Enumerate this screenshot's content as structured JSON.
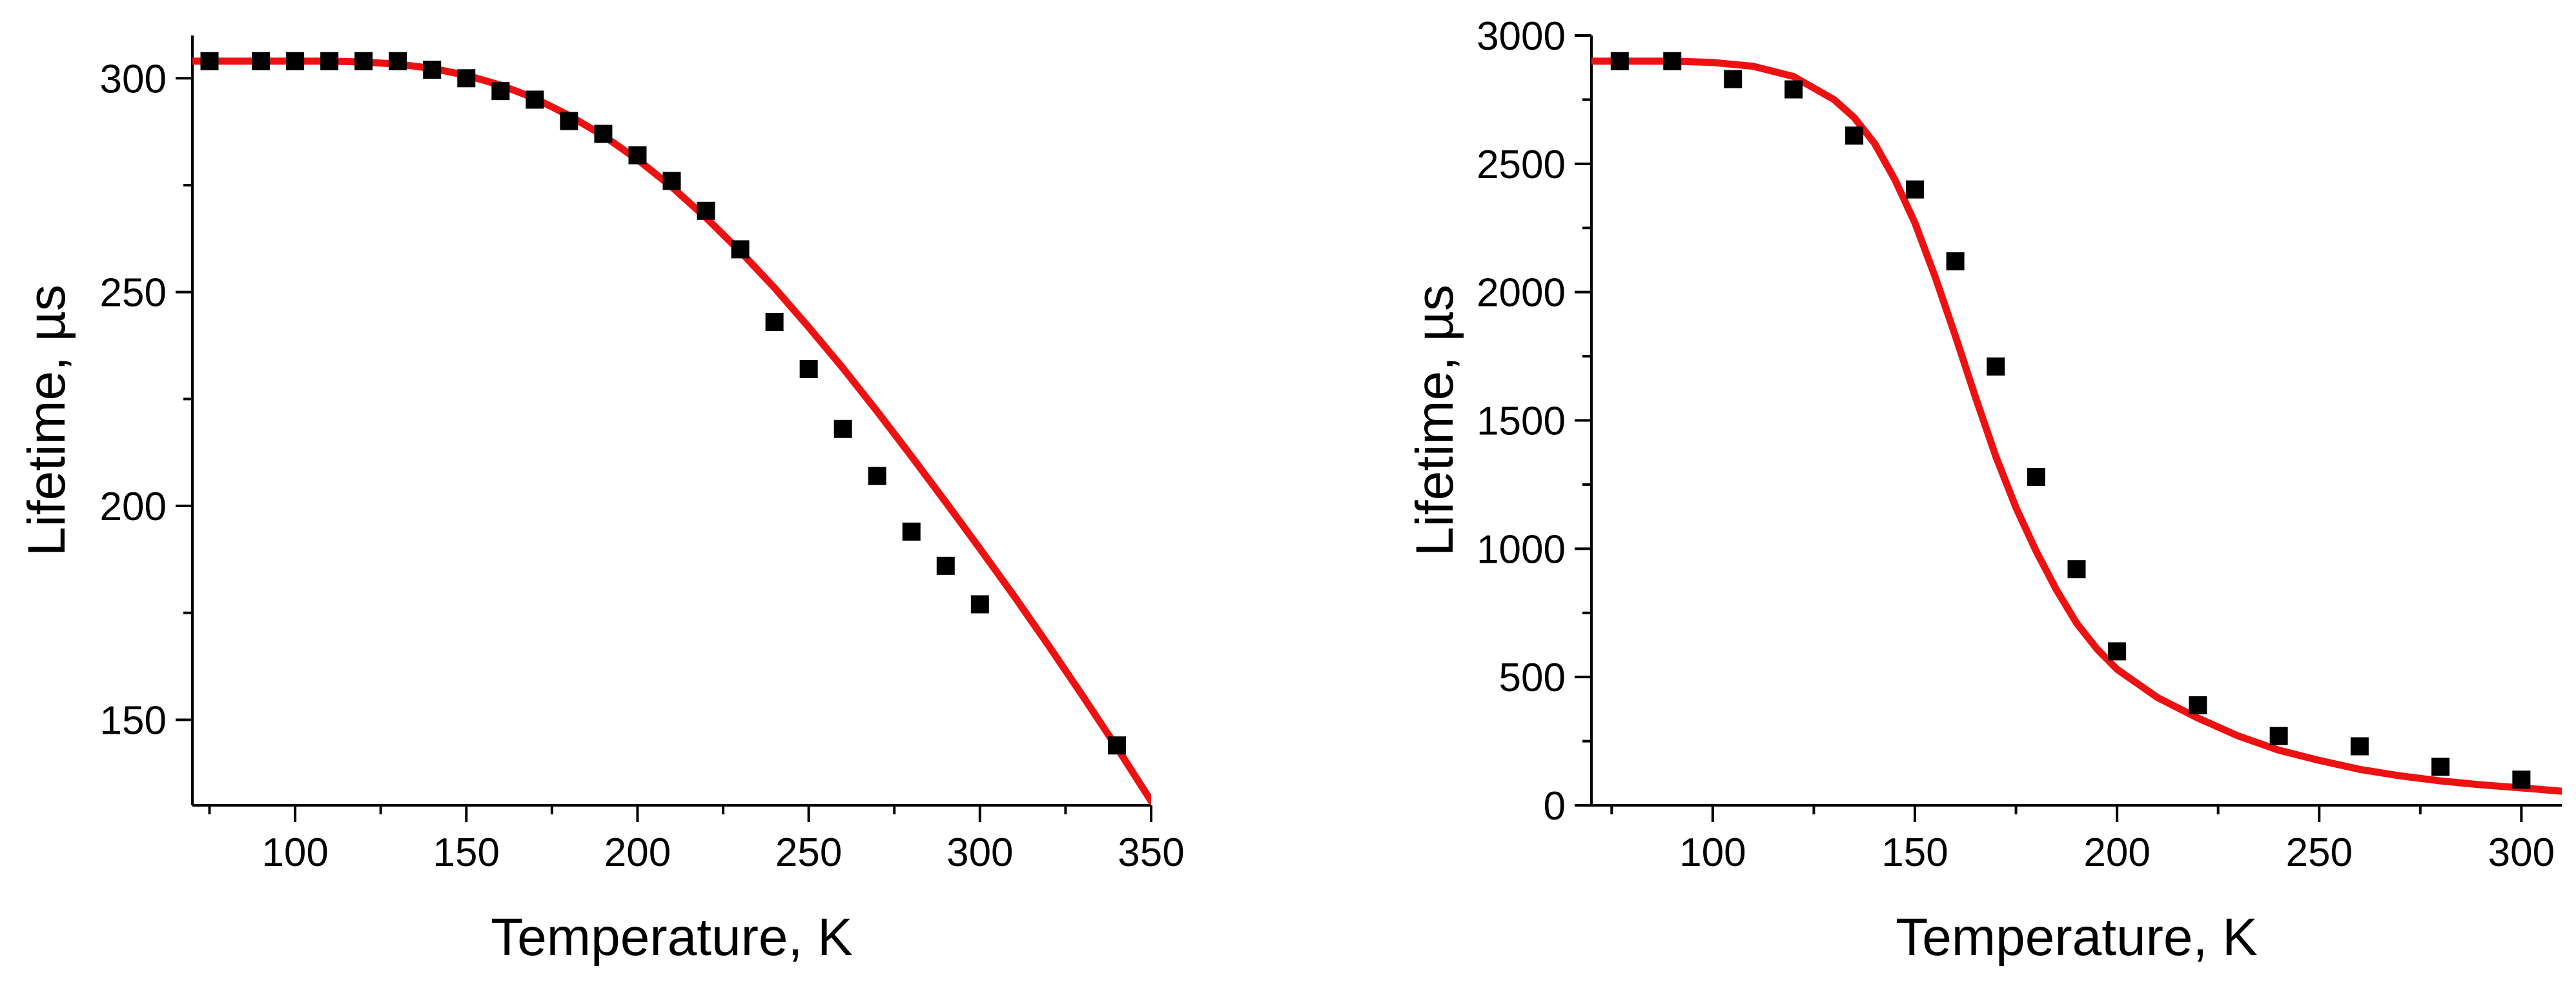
{
  "chart_data": [
    {
      "type": "scatter",
      "xlabel": "Temperature, K",
      "ylabel": "Lifetime, µs",
      "xlim": [
        70,
        350
      ],
      "ylim": [
        130,
        310
      ],
      "xticks": [
        100,
        150,
        200,
        250,
        300,
        350
      ],
      "yticks": [
        150,
        200,
        250,
        300
      ],
      "series": [
        {
          "kind": "points",
          "color": "#000000",
          "x": [
            75,
            90,
            100,
            110,
            120,
            130,
            140,
            150,
            160,
            170,
            180,
            190,
            200,
            210,
            220,
            230,
            240,
            250,
            260,
            270,
            280,
            290,
            300,
            340
          ],
          "y": [
            304,
            304,
            304,
            304,
            304,
            304,
            302,
            300,
            297,
            295,
            290,
            287,
            282,
            276,
            269,
            260,
            243,
            232,
            218,
            207,
            194,
            186,
            177,
            144
          ]
        },
        {
          "kind": "fit-line",
          "color": "#ee1111",
          "x": [
            70,
            80,
            90,
            100,
            110,
            120,
            130,
            140,
            150,
            160,
            170,
            180,
            190,
            200,
            210,
            220,
            230,
            240,
            250,
            260,
            270,
            280,
            290,
            300,
            310,
            320,
            330,
            340,
            350
          ],
          "y": [
            304,
            304,
            304,
            304,
            304,
            303.8,
            303.3,
            302.3,
            300.7,
            298.4,
            295.3,
            291.3,
            286.6,
            281.0,
            274.6,
            267.4,
            259.5,
            251.0,
            241.8,
            232.2,
            222.1,
            211.6,
            200.9,
            190.0,
            178.9,
            167.4,
            155.6,
            143.5,
            131.0
          ]
        }
      ]
    },
    {
      "type": "scatter",
      "xlabel": "Temperature, K",
      "ylabel": "Lifetime, µs",
      "xlim": [
        70,
        310
      ],
      "ylim": [
        0,
        3000
      ],
      "xticks": [
        100,
        150,
        200,
        250,
        300
      ],
      "yticks": [
        0,
        500,
        1000,
        1500,
        2000,
        2500,
        3000
      ],
      "series": [
        {
          "kind": "points",
          "color": "#000000",
          "x": [
            77,
            90,
            105,
            120,
            135,
            150,
            160,
            170,
            180,
            190,
            200,
            220,
            240,
            260,
            280,
            300
          ],
          "y": [
            2900,
            2900,
            2830,
            2790,
            2610,
            2400,
            2120,
            1710,
            1280,
            920,
            600,
            390,
            270,
            230,
            150,
            100
          ]
        },
        {
          "kind": "fit-line",
          "color": "#ee1111",
          "x": [
            70,
            80,
            90,
            100,
            110,
            120,
            130,
            135,
            140,
            145,
            150,
            155,
            160,
            165,
            170,
            175,
            180,
            185,
            190,
            195,
            200,
            210,
            220,
            230,
            240,
            250,
            260,
            270,
            280,
            290,
            300,
            310
          ],
          "y": [
            2900,
            2900,
            2900,
            2895,
            2880,
            2840,
            2750,
            2680,
            2580,
            2440,
            2270,
            2060,
            1830,
            1590,
            1360,
            1160,
            990,
            840,
            710,
            610,
            530,
            420,
            340,
            270,
            215,
            175,
            140,
            115,
            95,
            80,
            68,
            55
          ]
        }
      ]
    }
  ]
}
